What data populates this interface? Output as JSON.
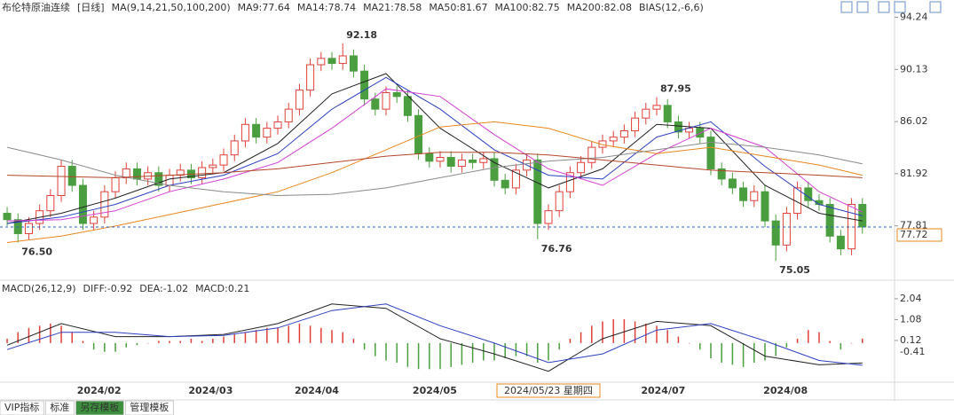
{
  "chart_data": [
    {
      "type": "candlestick",
      "title": "布伦特原油连续",
      "subtitle": "[日线]",
      "ma_label": "MA(9,14,21,50,100,200)",
      "bias_label": "BIAS(12,-6,6)",
      "xlim": [
        -0.66,
        81.97
      ],
      "ylim": [
        73.6,
        94.9
      ],
      "yticks": [
        94.24,
        90.13,
        86.02,
        81.92,
        77.81
      ],
      "up_color": "#e0403a",
      "down_color": "#4a9e3f",
      "open": [
        78.8,
        78.3,
        77.2,
        78.0,
        79.0,
        80.2,
        82.5,
        81.0,
        78.0,
        78.5,
        80.5,
        81.6,
        82.3,
        81.5,
        82.0,
        81.0,
        81.8,
        82.2,
        81.6,
        82.4,
        82.6,
        83.4,
        84.5,
        85.8,
        84.8,
        85.5,
        86.0,
        87.0,
        88.5,
        90.5,
        91.0,
        90.6,
        91.2,
        90.0,
        87.8,
        87.0,
        88.3,
        88.0,
        86.5,
        83.5,
        82.9,
        83.2,
        82.5,
        83.0,
        82.8,
        83.1,
        81.4,
        80.8,
        82.2,
        83.0,
        78.0,
        79.0,
        80.5,
        82.0,
        82.8,
        84.0,
        84.5,
        84.8,
        85.3,
        86.3,
        87.0,
        87.3,
        86.0,
        85.2,
        85.5,
        84.8,
        82.3,
        81.5,
        80.8,
        79.8,
        80.5,
        78.2,
        76.3,
        78.8,
        80.8,
        79.8,
        79.5,
        77.0,
        76.0,
        79.5
      ],
      "high": [
        79.3,
        78.8,
        78.5,
        79.5,
        80.7,
        83.0,
        83.0,
        81.5,
        79.0,
        81.0,
        82.1,
        82.8,
        82.8,
        82.5,
        82.5,
        82.3,
        82.7,
        82.7,
        82.9,
        83.1,
        83.9,
        85.0,
        86.3,
        86.3,
        86.0,
        86.5,
        87.5,
        89.0,
        91.0,
        91.5,
        91.5,
        92.18,
        91.7,
        90.5,
        88.3,
        88.8,
        88.8,
        88.5,
        87.0,
        84.0,
        83.7,
        83.7,
        83.5,
        83.5,
        83.6,
        83.6,
        81.9,
        82.7,
        83.5,
        83.5,
        79.5,
        81.0,
        82.5,
        83.3,
        84.5,
        85.0,
        85.3,
        85.8,
        86.8,
        87.5,
        87.95,
        87.8,
        86.5,
        86.0,
        86.0,
        85.3,
        82.8,
        82.0,
        81.3,
        81.0,
        81.0,
        78.7,
        79.3,
        81.3,
        81.3,
        80.3,
        80.0,
        77.5,
        80.0,
        80.0
      ],
      "low": [
        77.8,
        76.5,
        76.7,
        77.5,
        78.5,
        79.7,
        80.5,
        77.5,
        77.5,
        78.0,
        80.0,
        81.1,
        81.0,
        81.0,
        80.5,
        80.5,
        81.3,
        81.1,
        81.1,
        81.9,
        82.1,
        82.9,
        84.0,
        84.3,
        84.3,
        85.0,
        85.5,
        86.5,
        88.0,
        90.0,
        90.1,
        90.1,
        89.5,
        87.3,
        86.5,
        86.5,
        87.5,
        86.0,
        83.0,
        82.4,
        82.4,
        82.0,
        82.0,
        82.3,
        82.3,
        80.9,
        80.3,
        80.3,
        81.7,
        76.76,
        77.5,
        78.5,
        80.0,
        81.5,
        82.3,
        83.5,
        84.0,
        84.3,
        84.8,
        85.8,
        86.5,
        85.5,
        84.7,
        84.7,
        84.3,
        81.8,
        81.0,
        80.3,
        79.3,
        79.3,
        77.7,
        75.05,
        75.8,
        78.3,
        79.3,
        79.0,
        76.5,
        75.5,
        75.5,
        77.2
      ],
      "close": [
        78.3,
        77.2,
        78.0,
        79.0,
        80.2,
        82.5,
        81.0,
        78.0,
        78.5,
        80.5,
        81.6,
        82.3,
        81.5,
        82.0,
        81.0,
        81.8,
        82.2,
        81.6,
        82.4,
        82.6,
        83.4,
        84.5,
        85.8,
        84.8,
        85.5,
        86.0,
        87.0,
        88.5,
        90.5,
        91.0,
        90.6,
        91.2,
        90.0,
        87.8,
        87.0,
        88.3,
        88.0,
        86.5,
        83.5,
        82.9,
        83.2,
        82.5,
        83.0,
        82.8,
        83.1,
        81.4,
        80.8,
        82.2,
        83.0,
        78.0,
        79.0,
        80.5,
        82.0,
        82.8,
        84.0,
        84.5,
        84.8,
        85.3,
        86.3,
        87.0,
        87.3,
        86.0,
        85.2,
        85.5,
        84.8,
        82.3,
        81.5,
        80.8,
        79.8,
        80.5,
        78.2,
        76.3,
        78.8,
        80.8,
        79.8,
        79.5,
        77.0,
        76.0,
        79.5,
        77.72
      ],
      "series": [
        {
          "name": "MA9:77.64",
          "color": "#222222",
          "x": [
            0,
            5,
            10,
            15,
            20,
            25,
            30,
            35,
            40,
            45,
            50,
            55,
            60,
            65,
            70,
            75,
            79
          ],
          "values": [
            78.0,
            78.8,
            80.0,
            81.5,
            82.0,
            84.3,
            88.2,
            89.8,
            85.5,
            82.8,
            80.8,
            82.3,
            85.8,
            85.5,
            81.0,
            78.8,
            78.2
          ]
        },
        {
          "name": "MA14:78.74",
          "color": "#2c3fbf",
          "x": [
            0,
            5,
            10,
            15,
            20,
            25,
            30,
            35,
            40,
            45,
            50,
            55,
            60,
            65,
            70,
            75,
            79
          ],
          "values": [
            78.0,
            78.5,
            79.5,
            81.0,
            81.8,
            83.5,
            87.0,
            89.5,
            87.0,
            83.8,
            81.8,
            81.5,
            84.8,
            86.0,
            82.5,
            79.5,
            78.6
          ]
        },
        {
          "name": "MA21:78.58",
          "color": "#d23fd2",
          "x": [
            0,
            5,
            10,
            15,
            20,
            25,
            30,
            35,
            40,
            45,
            50,
            55,
            60,
            65,
            70,
            75,
            79
          ],
          "values": [
            78.2,
            78.3,
            79.0,
            80.5,
            81.5,
            82.8,
            85.5,
            88.6,
            88.0,
            85.0,
            82.3,
            81.0,
            83.5,
            85.5,
            84.0,
            80.5,
            78.9
          ]
        },
        {
          "name": "MA50:81.67",
          "color": "#e8871e",
          "x": [
            0,
            5,
            10,
            15,
            20,
            25,
            30,
            35,
            40,
            45,
            50,
            55,
            60,
            65,
            70,
            75,
            79
          ],
          "values": [
            76.5,
            77.0,
            77.8,
            78.7,
            79.6,
            80.5,
            82.0,
            83.8,
            85.6,
            86.0,
            85.5,
            84.2,
            83.5,
            84.0,
            83.3,
            82.6,
            81.8
          ]
        },
        {
          "name": "MA100:82.75",
          "color": "#8a8a8a",
          "x": [
            0,
            5,
            10,
            15,
            20,
            25,
            30,
            35,
            40,
            45,
            50,
            55,
            60,
            65,
            70,
            75,
            79
          ],
          "values": [
            84.0,
            83.0,
            81.8,
            81.0,
            80.5,
            80.2,
            80.3,
            80.8,
            81.6,
            82.4,
            82.9,
            83.2,
            83.8,
            84.4,
            84.0,
            83.4,
            82.7
          ]
        },
        {
          "name": "MA200:82.08",
          "color": "#b5452a",
          "x": [
            0,
            5,
            10,
            15,
            20,
            25,
            30,
            35,
            40,
            45,
            50,
            55,
            60,
            65,
            70,
            75,
            79
          ],
          "values": [
            81.8,
            81.7,
            81.6,
            81.8,
            82.0,
            82.3,
            82.8,
            83.3,
            83.6,
            83.6,
            83.4,
            83.0,
            82.6,
            82.2,
            82.0,
            81.8,
            81.6
          ]
        }
      ],
      "annotations": [
        {
          "value": 76.5,
          "label": "76.50",
          "x": 1
        },
        {
          "value": 92.18,
          "x": 31
        },
        {
          "value": 76.76,
          "x": 49
        },
        {
          "value": 87.95,
          "x": 60
        },
        {
          "value": 75.05,
          "x": 71
        }
      ],
      "last_price": {
        "value": 77.72,
        "color": "#2a62c8"
      },
      "xticks": [
        {
          "value": 8.5,
          "label": "2024/02"
        },
        {
          "value": 18.8,
          "label": "2024/03"
        },
        {
          "value": 28.6,
          "label": "2024/04"
        },
        {
          "value": 39.5,
          "label": "2024/05"
        },
        {
          "value": 60.6,
          "label": "2024/07"
        },
        {
          "value": 71.9,
          "label": "2024/08"
        }
      ],
      "cursor_date": {
        "value": 50,
        "label": "2024/05/23 星期四"
      }
    },
    {
      "type": "macd",
      "title": "MACD(26,12,9)",
      "name": "MACD:0.21",
      "ylim": [
        -1.76,
        2.65
      ],
      "yticks": [
        2.04,
        1.08,
        0.12
      ],
      "cursor_value": -0.41,
      "up_color": "#e0403a",
      "down_color": "#4a9e3f",
      "values": [
        0.2,
        0.5,
        0.7,
        0.8,
        0.9,
        0.8,
        0.5,
        0.1,
        -0.3,
        -0.4,
        -0.4,
        -0.2,
        -0.1,
        0.0,
        0.1,
        0.1,
        0.1,
        0.2,
        0.1,
        0.2,
        0.3,
        0.4,
        0.5,
        0.6,
        0.7,
        0.7,
        0.8,
        0.9,
        0.8,
        0.7,
        0.6,
        0.5,
        0.2,
        -0.3,
        -0.6,
        -0.8,
        -0.9,
        -1.1,
        -1.2,
        -1.2,
        -1.2,
        -1.1,
        -1.0,
        -0.9,
        -0.8,
        -0.8,
        -0.7,
        -0.6,
        -0.6,
        -0.9,
        -0.8,
        -0.3,
        0.2,
        0.5,
        0.8,
        1.0,
        1.1,
        1.1,
        1.0,
        0.9,
        0.8,
        0.6,
        0.3,
        0.0,
        -0.3,
        -0.7,
        -0.9,
        -1.0,
        -1.1,
        -0.9,
        -0.8,
        -0.6,
        -0.2,
        0.2,
        0.6,
        0.5,
        0.1,
        -0.3,
        0.0,
        0.21
      ],
      "series": [
        {
          "name": "DIFF:-0.92",
          "color": "#222222",
          "x": [
            0,
            5,
            10,
            15,
            20,
            25,
            30,
            35,
            40,
            45,
            50,
            55,
            60,
            65,
            70,
            75,
            79
          ],
          "values": [
            -0.1,
            0.9,
            0.3,
            0.3,
            0.4,
            0.9,
            1.8,
            1.6,
            0.2,
            -0.5,
            -1.3,
            0.2,
            1.0,
            0.8,
            -0.6,
            -1.0,
            -0.92
          ]
        },
        {
          "name": "DEA:-1.02",
          "color": "#2c3fbf",
          "x": [
            0,
            5,
            10,
            15,
            20,
            25,
            30,
            35,
            40,
            45,
            50,
            55,
            60,
            65,
            70,
            75,
            79
          ],
          "values": [
            -0.3,
            0.5,
            0.5,
            0.3,
            0.35,
            0.7,
            1.5,
            1.8,
            0.8,
            0.0,
            -0.9,
            -0.5,
            0.6,
            0.9,
            0.1,
            -0.8,
            -1.02
          ]
        }
      ]
    }
  ],
  "tabs": [
    "VIP指标",
    "标准",
    "另存模板",
    "管理模板"
  ]
}
